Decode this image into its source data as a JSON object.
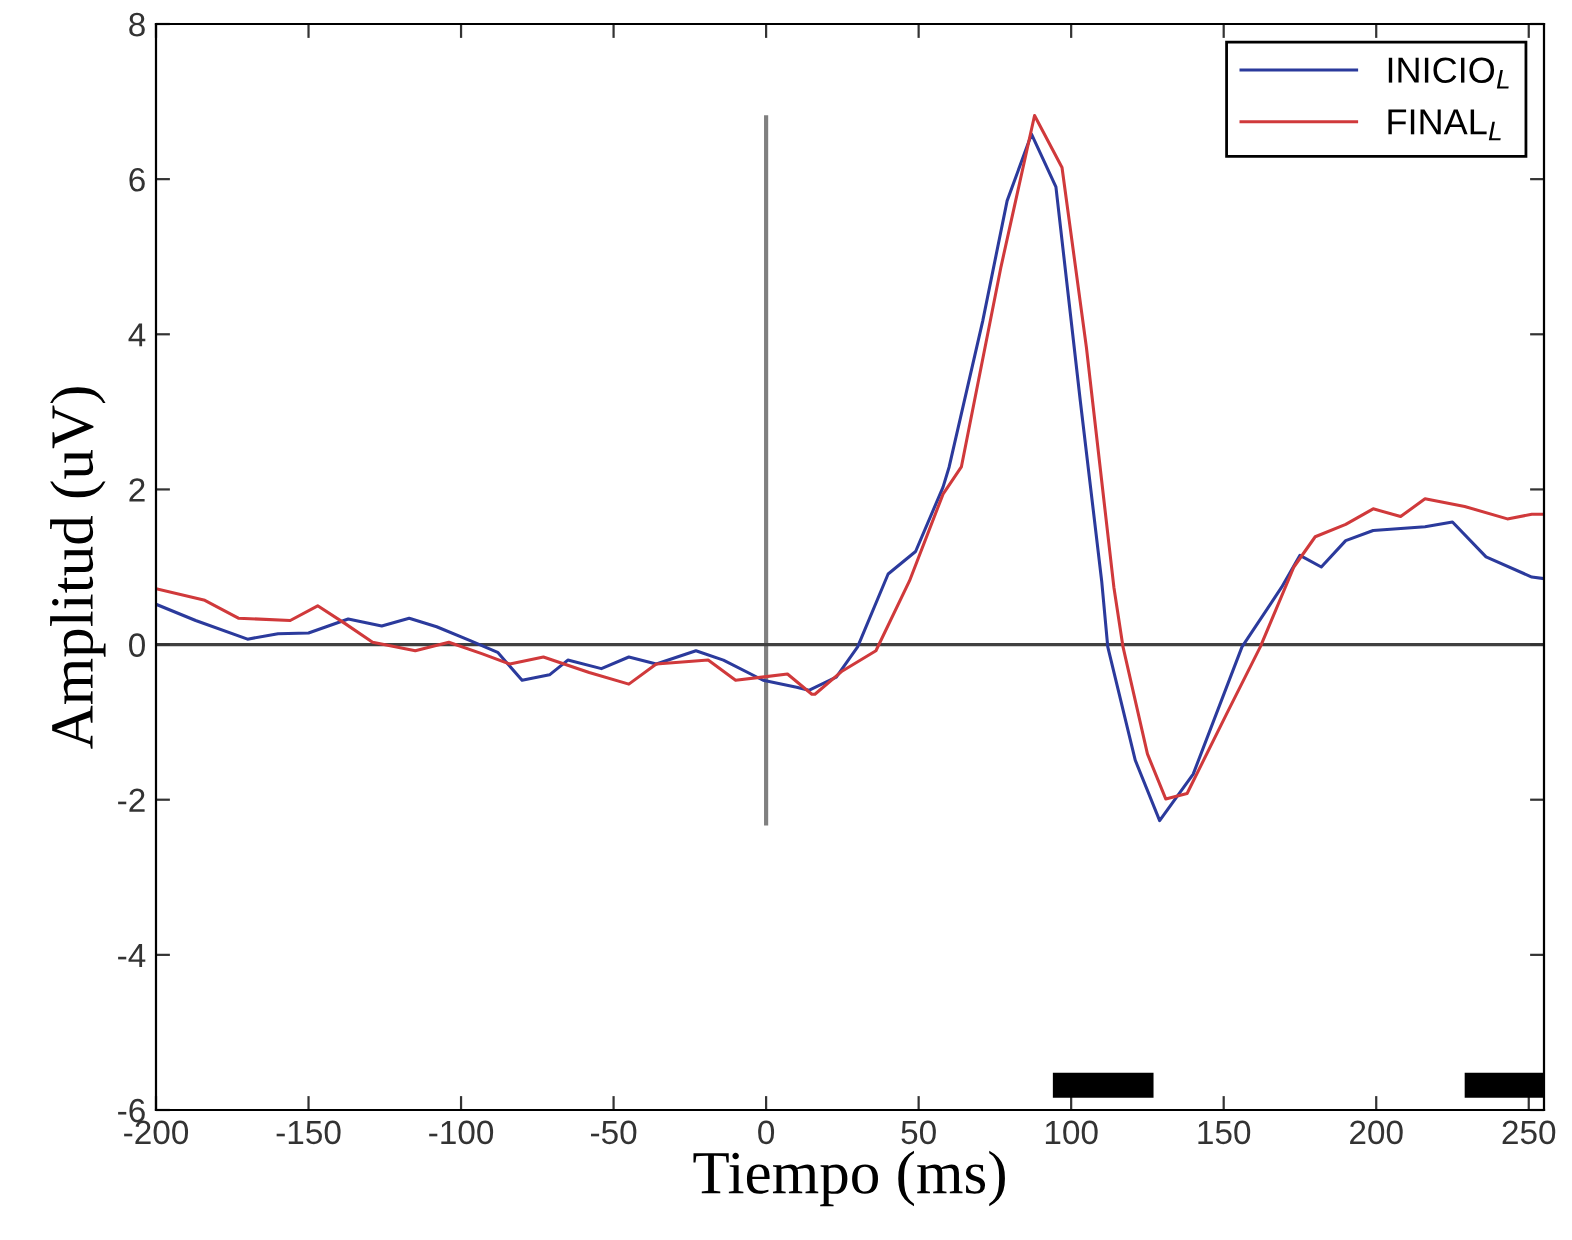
{
  "chart_data": {
    "type": "line",
    "xlabel": "Tiempo (ms)",
    "ylabel": "Amplitud (uV)",
    "xlim": [
      -200,
      255
    ],
    "ylim": [
      -6,
      8
    ],
    "xticks": [
      -200,
      -150,
      -100,
      -50,
      0,
      50,
      100,
      150,
      200,
      250
    ],
    "yticks": [
      -6,
      -4,
      -2,
      0,
      2,
      4,
      6,
      8
    ],
    "grid": false,
    "legend": "top right",
    "line_style": "solid",
    "marker": "none",
    "series": [
      {
        "name": "INICIO$_{L}$",
        "color": "#2b3a9c",
        "x": [
          -200,
          -187,
          -170,
          -160,
          -150,
          -137,
          -126,
          -117,
          -108,
          -97,
          -88,
          -80,
          -71,
          -65,
          -54,
          -45,
          -36,
          -23,
          -14,
          -1,
          10,
          14,
          23,
          30,
          40,
          49,
          58,
          60,
          71,
          79,
          87,
          95,
          103,
          110,
          112,
          121,
          129,
          140,
          156,
          169,
          175,
          182,
          190,
          199,
          216,
          225,
          236,
          251,
          255
        ],
        "values": [
          0.52,
          0.31,
          0.07,
          0.14,
          0.15,
          0.33,
          0.24,
          0.34,
          0.23,
          0.05,
          -0.1,
          -0.46,
          -0.39,
          -0.2,
          -0.31,
          -0.16,
          -0.25,
          -0.08,
          -0.2,
          -0.46,
          -0.55,
          -0.59,
          -0.42,
          -0.03,
          0.91,
          1.2,
          2.03,
          2.29,
          4.17,
          5.72,
          6.58,
          5.9,
          3.14,
          0.82,
          -0.03,
          -1.49,
          -2.27,
          -1.67,
          -0.03,
          0.74,
          1.15,
          1.0,
          1.34,
          1.47,
          1.52,
          1.58,
          1.13,
          0.87,
          0.85
        ]
      },
      {
        "name": "FINAL$_{L}$",
        "color": "#d0393b",
        "x": [
          -200,
          -184,
          -173,
          -156,
          -147,
          -138,
          -129,
          -115,
          -104,
          -93,
          -84,
          -73,
          -58,
          -45,
          -36,
          -19,
          -10,
          7,
          15,
          16,
          25,
          36,
          47,
          58,
          64,
          77,
          88,
          97,
          105,
          114,
          117,
          125,
          131,
          138,
          151,
          162,
          173,
          180,
          190,
          199,
          208,
          216,
          229,
          243,
          251,
          255
        ],
        "values": [
          0.72,
          0.57,
          0.34,
          0.31,
          0.5,
          0.27,
          0.03,
          -0.08,
          0.03,
          -0.12,
          -0.25,
          -0.16,
          -0.36,
          -0.51,
          -0.25,
          -0.2,
          -0.46,
          -0.38,
          -0.64,
          -0.64,
          -0.34,
          -0.08,
          0.82,
          1.94,
          2.29,
          4.87,
          6.82,
          6.15,
          3.83,
          0.74,
          -0.03,
          -1.41,
          -1.99,
          -1.92,
          -0.89,
          -0.03,
          1.0,
          1.39,
          1.55,
          1.75,
          1.65,
          1.88,
          1.78,
          1.62,
          1.68,
          1.68
        ]
      },
      {
        "type": "line",
        "color": "#000000",
        "x": [
          94,
          127,
          128,
          229,
          255
        ],
        "values": [
          -5.68,
          -5.68,
          null,
          -5.68,
          -5.68
        ]
      }
    ],
    "ref_lines": [
      {
        "axis": "x",
        "value": 0,
        "color": "#808080"
      },
      {
        "axis": "y",
        "value": 0,
        "color": "#404040"
      }
    ]
  }
}
